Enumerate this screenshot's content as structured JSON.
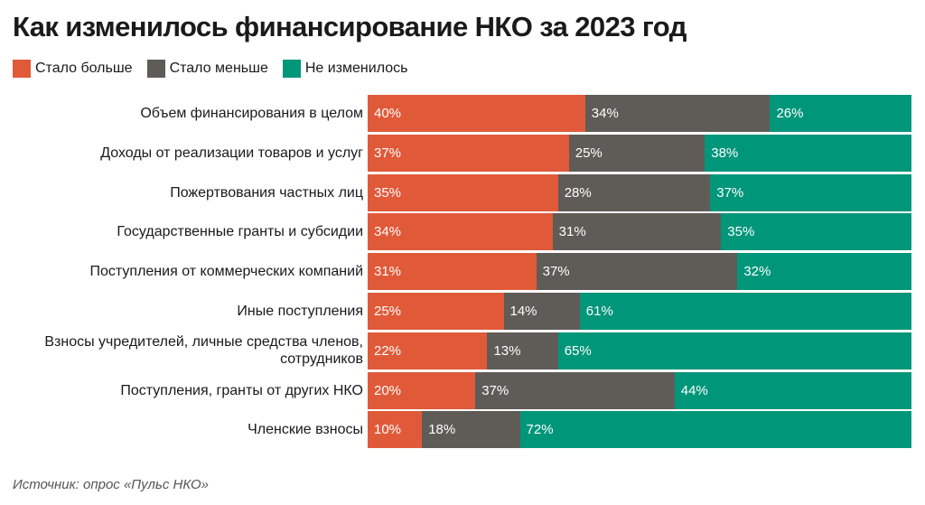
{
  "title": "Как изменилось финансирование НКО за 2023 год",
  "legend": [
    {
      "label": "Стало больше",
      "color": "#e05a3a"
    },
    {
      "label": "Стало меньше",
      "color": "#5f5b57"
    },
    {
      "label": "Не изменилось",
      "color": "#00967a"
    }
  ],
  "source": "Источник: опрос «Пульс НКО»",
  "chart_data": {
    "type": "bar",
    "orientation": "horizontal",
    "stacked": true,
    "percent_stacked": true,
    "categories": [
      "Объем финансирования в целом",
      "Доходы от реализации товаров и услуг",
      "Пожертвования частных лиц",
      "Государственные гранты и субсидии",
      "Поступления от коммерческих компаний",
      "Иные поступления",
      "Взносы учредителей, личные средства членов, сотрудников",
      "Поступления, гранты от других НКО",
      "Членские взносы"
    ],
    "series": [
      {
        "name": "Стало больше",
        "color": "#e05a3a",
        "values": [
          40,
          37,
          35,
          34,
          31,
          25,
          22,
          20,
          10
        ]
      },
      {
        "name": "Стало меньше",
        "color": "#5f5b57",
        "values": [
          34,
          25,
          28,
          31,
          37,
          14,
          13,
          37,
          18
        ]
      },
      {
        "name": "Не изменилось",
        "color": "#00967a",
        "values": [
          26,
          38,
          37,
          35,
          32,
          61,
          65,
          44,
          72
        ]
      }
    ],
    "unit": "%",
    "legend_position": "top-left",
    "grid": false
  }
}
